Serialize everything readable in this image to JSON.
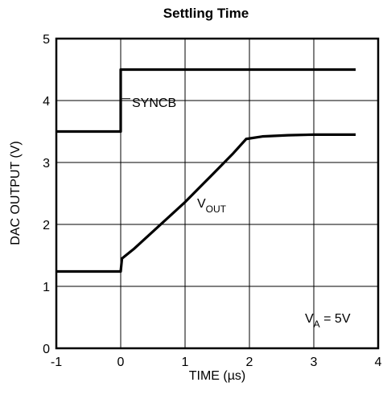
{
  "chart_data": {
    "type": "line",
    "title": "Settling Time",
    "xlabel": "TIME (µs)",
    "ylabel": "DAC OUTPUT (V)",
    "xlim": [
      -1,
      4
    ],
    "ylim": [
      0,
      5
    ],
    "xticks": [
      "-1",
      "0",
      "1",
      "2",
      "3",
      "4"
    ],
    "yticks": [
      "0",
      "1",
      "2",
      "3",
      "4",
      "5"
    ],
    "grid": true,
    "series": [
      {
        "name": "SYNCB",
        "x": [
          -1,
          0,
          0,
          3.65
        ],
        "y": [
          3.5,
          3.5,
          4.5,
          4.5
        ]
      },
      {
        "name": "V_OUT",
        "x": [
          -1,
          0,
          0.02,
          0.2,
          0.6,
          1.0,
          1.4,
          1.75,
          1.95,
          2.2,
          2.6,
          3.0,
          3.65
        ],
        "y": [
          1.24,
          1.24,
          1.45,
          1.6,
          1.98,
          2.36,
          2.78,
          3.15,
          3.38,
          3.42,
          3.44,
          3.45,
          3.45
        ]
      }
    ],
    "annotations": {
      "syncb": "SYNCB",
      "vout_main": "V",
      "vout_sub": "OUT",
      "va_main": "V",
      "va_sub": "A",
      "va_rest": " = 5V"
    }
  }
}
